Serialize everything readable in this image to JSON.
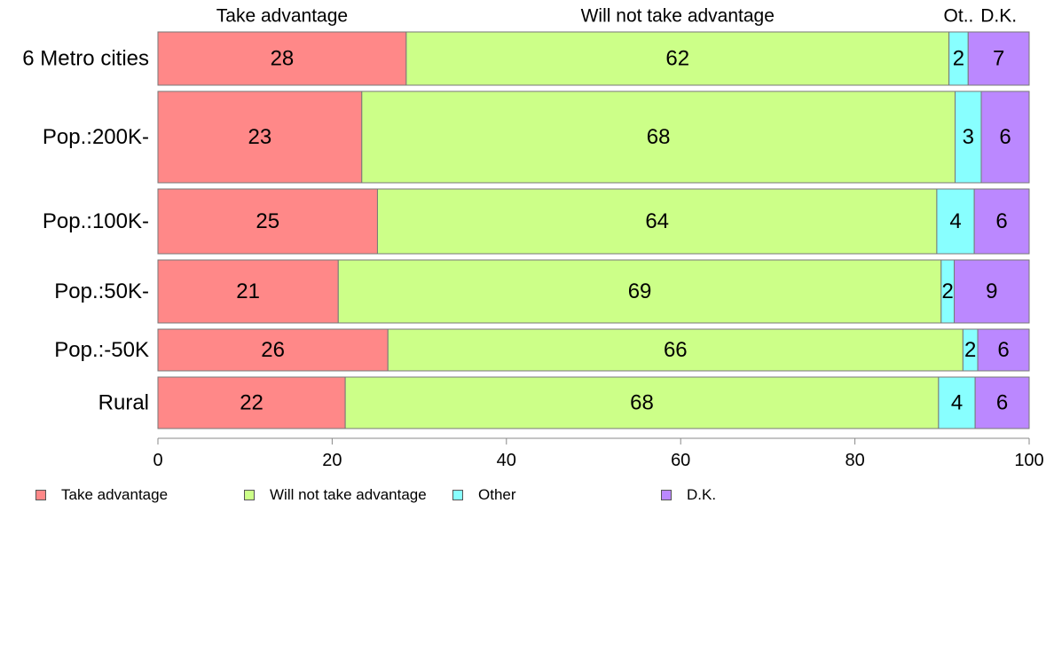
{
  "chart_data": {
    "type": "bar",
    "orientation": "horizontal",
    "stacked": true,
    "categories": [
      "6 Metro cities",
      "Pop.:200K-",
      "Pop.:100K-",
      "Pop.:50K-",
      "Pop.:-50K",
      "Rural"
    ],
    "series": [
      {
        "name": "Take advantage",
        "color": "#ff8888",
        "values": [
          28.5,
          23.4,
          25.2,
          20.7,
          26.4,
          21.5
        ],
        "labels": [
          "28",
          "23",
          "25",
          "21",
          "26",
          "22"
        ]
      },
      {
        "name": "Will not take advantage",
        "color": "#ccff88",
        "values": [
          62.3,
          68.1,
          64.2,
          69.2,
          66.0,
          68.1
        ],
        "labels": [
          "62",
          "68",
          "64",
          "69",
          "66",
          "68"
        ]
      },
      {
        "name": "Other",
        "color": "#88ffff",
        "values": [
          2.2,
          3.0,
          4.3,
          1.5,
          1.7,
          4.2
        ],
        "labels": [
          "2",
          "3",
          "4",
          "2",
          "2",
          "4"
        ]
      },
      {
        "name": "D.K.",
        "color": "#bb88ff",
        "values": [
          7.0,
          5.5,
          6.3,
          8.6,
          5.9,
          6.2
        ],
        "labels": [
          "7",
          "6",
          "6",
          "9",
          "6",
          "6"
        ]
      }
    ],
    "top_labels": [
      "Take advantage",
      "Will not take advantage",
      "Ot..",
      "D.K."
    ],
    "xlim": [
      0,
      100
    ],
    "xticks": [
      "0",
      "20",
      "40",
      "60",
      "80",
      "100"
    ],
    "grid": false,
    "legend_position": "bottom"
  }
}
